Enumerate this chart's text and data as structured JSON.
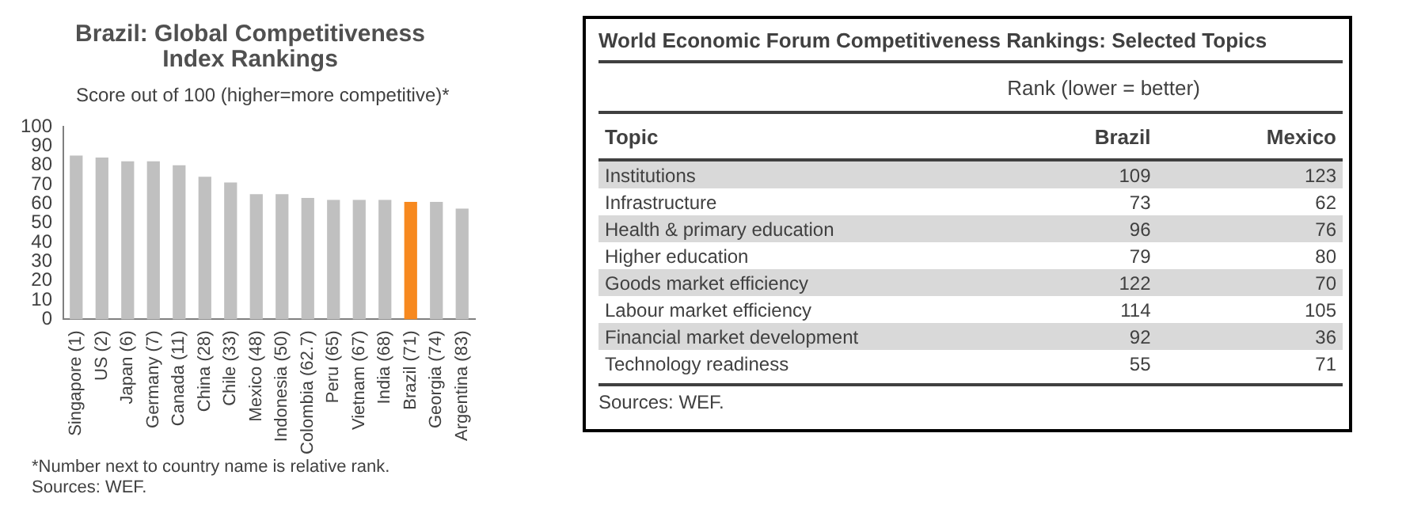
{
  "chart_data": [
    {
      "type": "bar",
      "title": "Brazil: Global Competitiveness Index Rankings",
      "ylabel": "Score out of 100 (higher=more competitive)*",
      "categories": [
        "Singapore (1)",
        "US (2)",
        "Japan (6)",
        "Germany (7)",
        "Canada (11)",
        "China (28)",
        "Chile (33)",
        "Mexico (48)",
        "Indonesia (50)",
        "Colombia (62.7)",
        "Peru (65)",
        "Vietnam (67)",
        "India (68)",
        "Brazil (71)",
        "Georgia (74)",
        "Argentina (83)"
      ],
      "values": [
        85,
        84,
        82,
        82,
        80,
        74,
        71,
        65,
        65,
        63,
        62,
        62,
        62,
        61,
        61,
        57.5
      ],
      "colors": [
        "#c0c0c0",
        "#c0c0c0",
        "#c0c0c0",
        "#c0c0c0",
        "#c0c0c0",
        "#c0c0c0",
        "#c0c0c0",
        "#c0c0c0",
        "#c0c0c0",
        "#c0c0c0",
        "#c0c0c0",
        "#c0c0c0",
        "#c0c0c0",
        "#f7891f",
        "#c0c0c0",
        "#c0c0c0"
      ],
      "ylim": [
        0,
        100
      ],
      "yticks": [
        0,
        10,
        20,
        30,
        40,
        50,
        60,
        70,
        80,
        90,
        100
      ],
      "grid": false,
      "legend": false,
      "annotations": [
        "*Number next to country name is relative rank.",
        "Sources: WEF."
      ]
    },
    {
      "type": "other",
      "title": "World Economic Forum Competitiveness Rankings: Selected Topics",
      "subtitle": "Rank (lower = better)",
      "ylabel": "Topic",
      "categories": [
        "Institutions",
        "Infrastructure",
        "Health & primary education",
        "Higher education",
        "Goods market efficiency",
        "Labour market efficiency",
        "Financial market development",
        "Technology readiness"
      ],
      "series": [
        {
          "name": "Brazil",
          "values": [
            109,
            73,
            96,
            79,
            122,
            114,
            92,
            55
          ]
        },
        {
          "name": "Mexico",
          "values": [
            123,
            62,
            76,
            80,
            70,
            105,
            36,
            71
          ]
        }
      ],
      "data_labels": true,
      "annotations": [
        "Sources: WEF."
      ]
    }
  ]
}
